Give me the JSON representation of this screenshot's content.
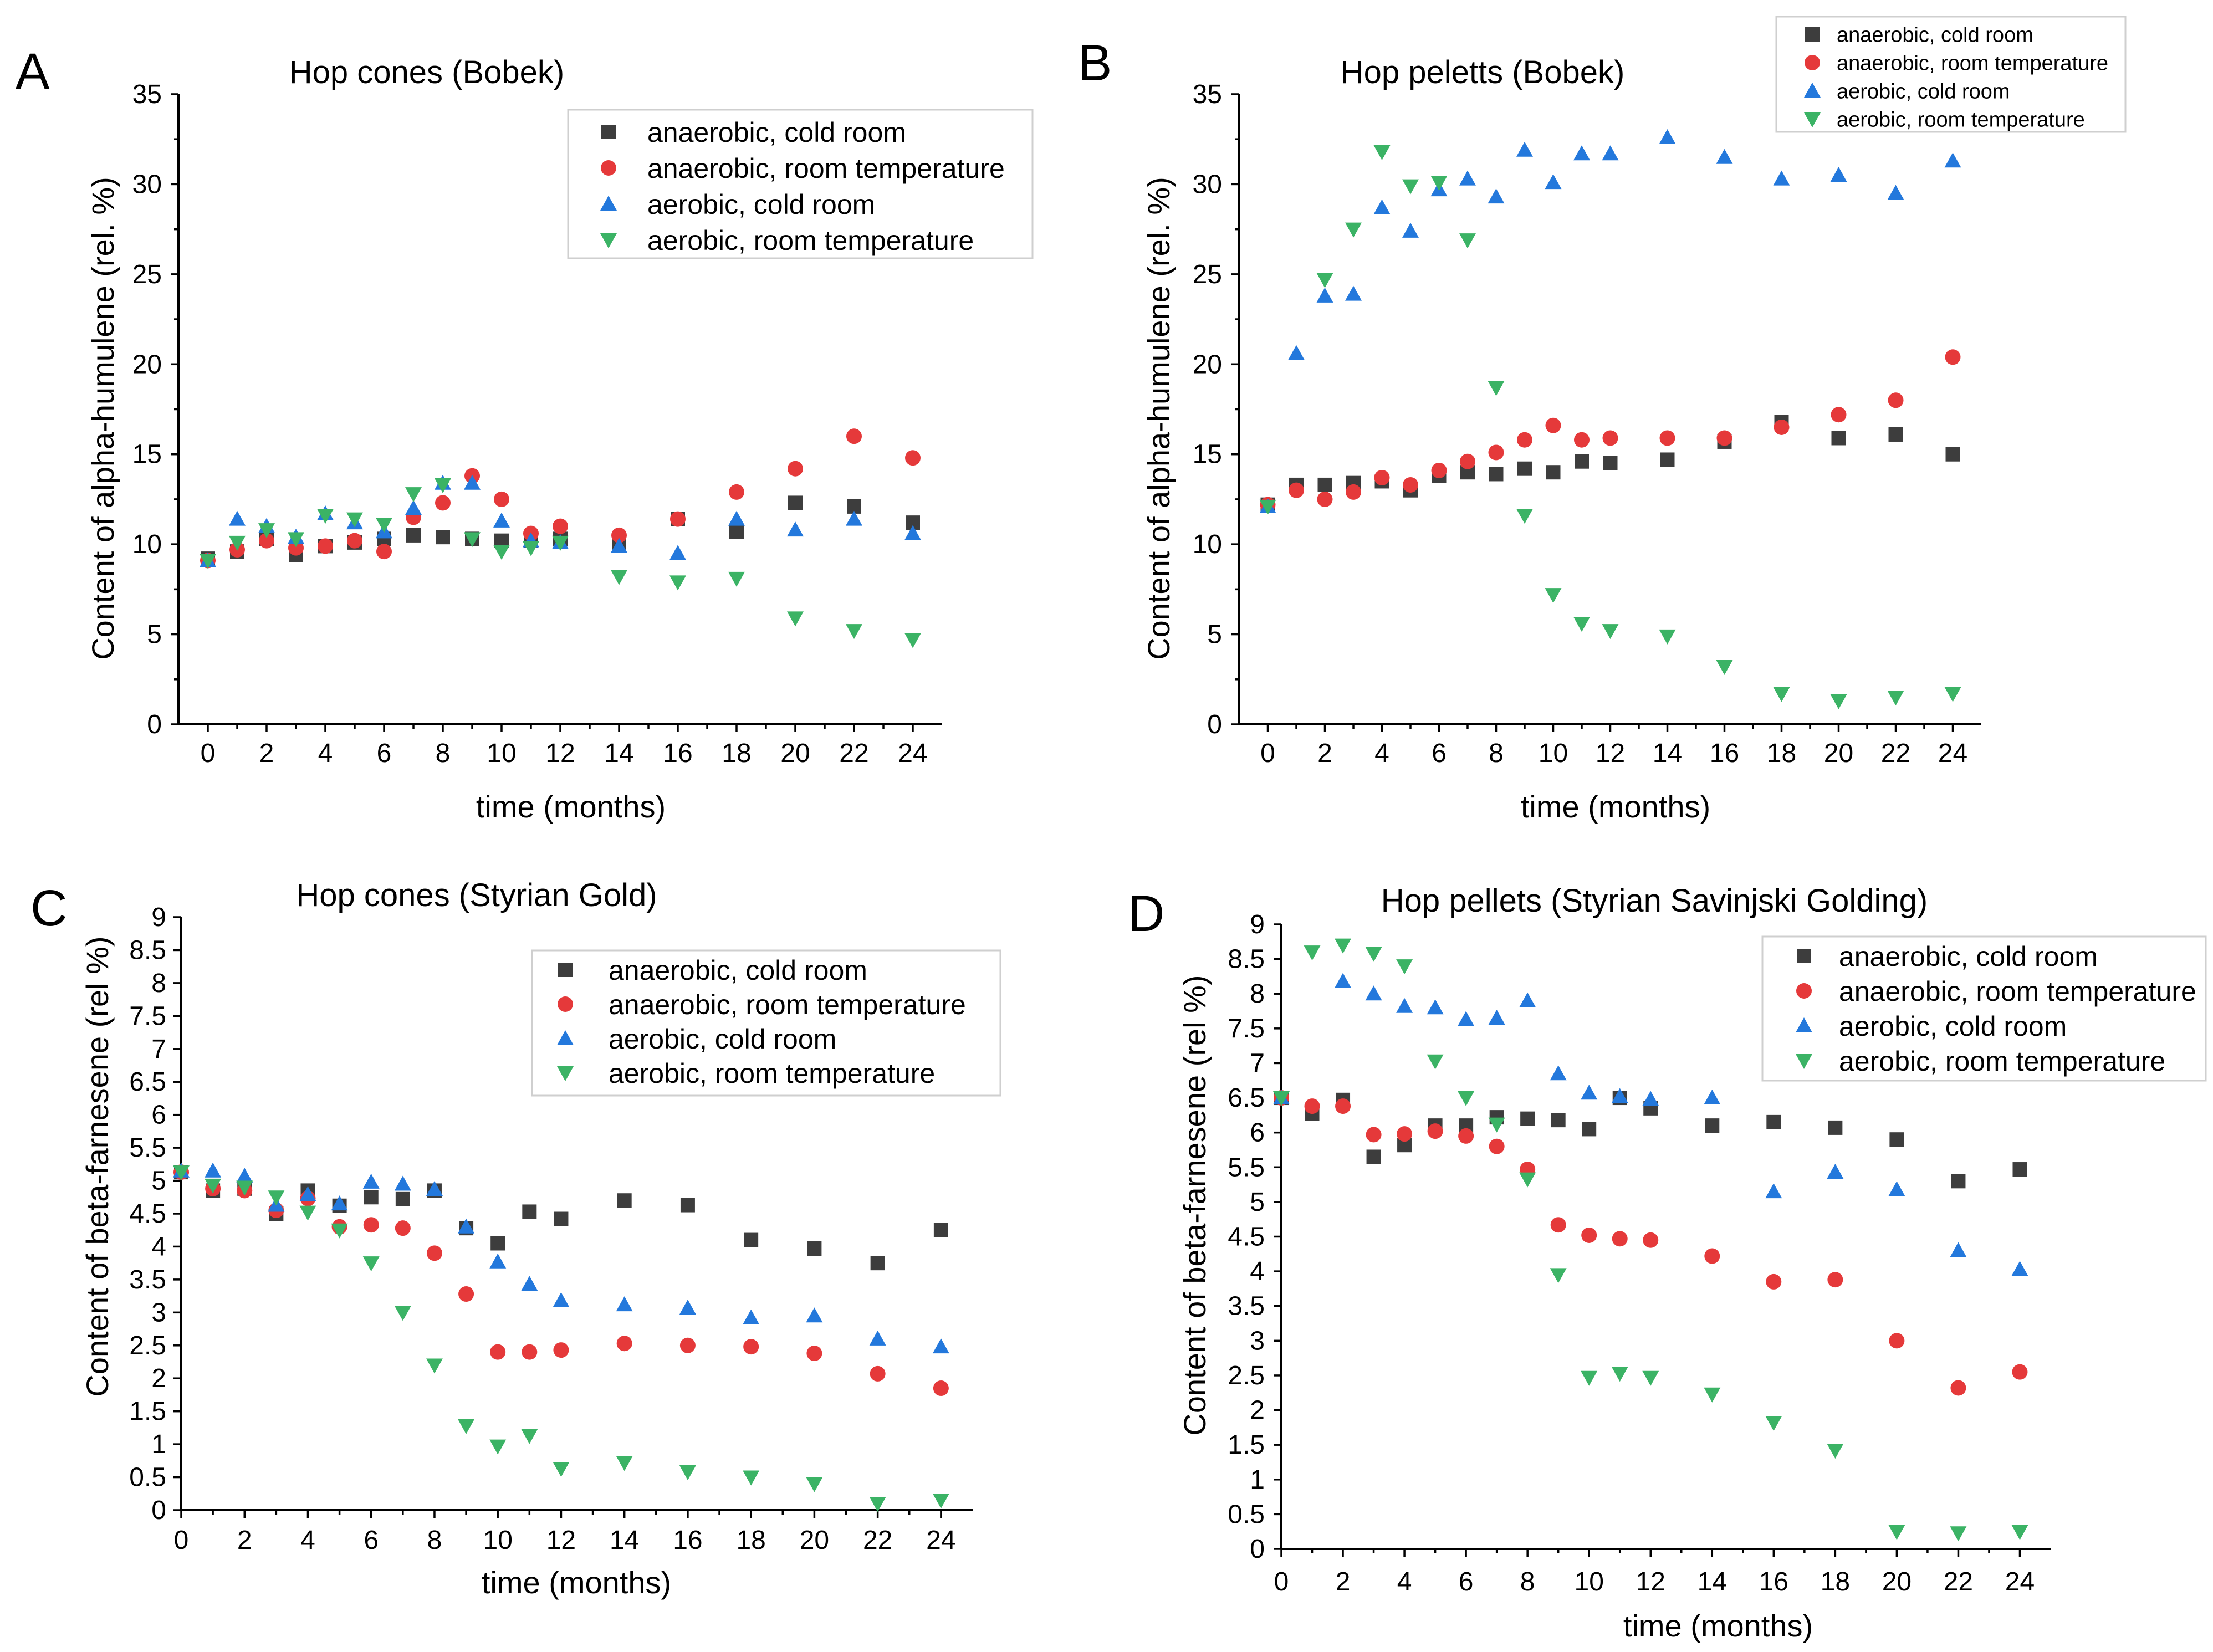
{
  "figure": {
    "colors": {
      "anaerobic_cold": "#3d3d3d",
      "anaerobic_room": "#e5393a",
      "aerobic_cold": "#2378dc",
      "aerobic_room": "#3bb365"
    },
    "legend_entries": [
      "anaerobic, cold room",
      "anaerobic, room temperature",
      "aerobic, cold room",
      "aerobic, room temperature"
    ]
  },
  "chart_data": [
    {
      "panel": "A",
      "type": "scatter",
      "title": "Hop cones (Bobek)",
      "xlabel": "time (months)",
      "ylabel": "Content of alpha-humulene (rel. %)",
      "xlim": [
        -1,
        25
      ],
      "ylim": [
        0,
        35
      ],
      "xticks": [
        "0",
        "2",
        "4",
        "6",
        "8",
        "10",
        "12",
        "14",
        "16",
        "18",
        "20",
        "22",
        "24"
      ],
      "yticks": [
        "0",
        "5",
        "10",
        "15",
        "20",
        "25",
        "30",
        "35"
      ],
      "legend_position": "top-right",
      "series": [
        {
          "name": "anaerobic, cold room",
          "marker": "square",
          "color": "#3d3d3d",
          "x": [
            0,
            1,
            2,
            3,
            4,
            5,
            6,
            7,
            8,
            9,
            10,
            11,
            12,
            14,
            16,
            18,
            20,
            22,
            24
          ],
          "y": [
            9.2,
            9.6,
            10.3,
            9.4,
            9.9,
            10.1,
            10.3,
            10.5,
            10.4,
            10.3,
            10.2,
            10.2,
            10.3,
            10.1,
            11.4,
            10.7,
            12.3,
            12.1,
            11.2
          ]
        },
        {
          "name": "anaerobic, room temperature",
          "marker": "circle",
          "color": "#e5393a",
          "x": [
            0,
            1,
            2,
            3,
            4,
            5,
            6,
            7,
            8,
            9,
            10,
            11,
            12,
            14,
            16,
            18,
            20,
            22,
            24
          ],
          "y": [
            9.1,
            9.7,
            10.2,
            9.8,
            9.9,
            10.2,
            9.6,
            11.5,
            12.3,
            13.8,
            12.5,
            10.6,
            11.0,
            10.5,
            11.4,
            12.9,
            14.2,
            16.0,
            14.8
          ]
        },
        {
          "name": "aerobic, cold room",
          "marker": "triangle-up",
          "color": "#2378dc",
          "x": [
            0,
            1,
            2,
            3,
            4,
            5,
            6,
            7,
            8,
            9,
            10,
            11,
            12,
            14,
            16,
            18,
            20,
            22,
            24
          ],
          "y": [
            9.1,
            11.4,
            11.0,
            10.4,
            11.7,
            11.2,
            10.7,
            12.0,
            13.4,
            13.4,
            11.3,
            10.2,
            10.1,
            9.9,
            9.5,
            11.4,
            10.8,
            11.4,
            10.6
          ]
        },
        {
          "name": "aerobic, room temperature",
          "marker": "triangle-down",
          "color": "#3bb365",
          "x": [
            0,
            1,
            2,
            3,
            4,
            5,
            6,
            7,
            8,
            9,
            10,
            11,
            12,
            14,
            16,
            18,
            20,
            22,
            24
          ],
          "y": [
            9.1,
            10.1,
            10.8,
            10.3,
            11.6,
            11.4,
            11.1,
            12.8,
            13.3,
            10.3,
            9.6,
            9.8,
            10.1,
            8.2,
            7.9,
            8.1,
            5.9,
            5.2,
            4.7
          ]
        }
      ]
    },
    {
      "panel": "B",
      "type": "scatter",
      "title": "Hop peletts (Bobek)",
      "xlabel": "time (months)",
      "ylabel": "Content of alpha-humulene (rel. %)",
      "xlim": [
        -1,
        25
      ],
      "ylim": [
        0,
        35
      ],
      "xticks": [
        "0",
        "2",
        "4",
        "6",
        "8",
        "10",
        "12",
        "14",
        "16",
        "18",
        "20",
        "22",
        "24"
      ],
      "yticks": [
        "0",
        "5",
        "10",
        "15",
        "20",
        "25",
        "30",
        "35"
      ],
      "legend_position": "top-right",
      "series": [
        {
          "name": "anaerobic, cold room",
          "marker": "square",
          "color": "#3d3d3d",
          "x": [
            0,
            1,
            2,
            3,
            4,
            5,
            6,
            7,
            8,
            9,
            10,
            11,
            12,
            14,
            16,
            18,
            20,
            22,
            24
          ],
          "y": [
            12.2,
            13.3,
            13.3,
            13.4,
            13.5,
            13.0,
            13.8,
            14.0,
            13.9,
            14.2,
            14.0,
            14.6,
            14.5,
            14.7,
            15.7,
            16.8,
            15.9,
            16.1,
            15.0
          ]
        },
        {
          "name": "anaerobic, room temperature",
          "marker": "circle",
          "color": "#e5393a",
          "x": [
            0,
            1,
            2,
            3,
            4,
            5,
            6,
            7,
            8,
            9,
            10,
            11,
            12,
            14,
            16,
            18,
            20,
            22,
            24
          ],
          "y": [
            12.2,
            13.0,
            12.5,
            12.9,
            13.7,
            13.3,
            14.1,
            14.6,
            15.1,
            15.8,
            16.6,
            15.8,
            15.9,
            15.9,
            15.9,
            16.5,
            17.2,
            18.0,
            20.4
          ]
        },
        {
          "name": "aerobic, cold room",
          "marker": "triangle-up",
          "color": "#2378dc",
          "x": [
            0,
            1,
            2,
            3,
            4,
            5,
            6,
            7,
            8,
            9,
            10,
            11,
            12,
            14,
            16,
            18,
            20,
            22,
            24
          ],
          "y": [
            12.1,
            20.6,
            23.8,
            23.9,
            28.7,
            27.4,
            29.7,
            30.3,
            29.3,
            31.9,
            30.1,
            31.7,
            31.7,
            32.6,
            31.5,
            30.3,
            30.5,
            29.5,
            31.3
          ]
        },
        {
          "name": "aerobic, room temperature",
          "marker": "triangle-down",
          "color": "#3bb365",
          "x": [
            0,
            2,
            3,
            4,
            5,
            6,
            7,
            8,
            9,
            10,
            11,
            12,
            14,
            16,
            18,
            20,
            22,
            24
          ],
          "y": [
            12.1,
            24.7,
            27.5,
            31.8,
            29.9,
            30.1,
            26.9,
            18.7,
            11.6,
            7.2,
            5.6,
            5.2,
            4.9,
            3.2,
            1.7,
            1.3,
            1.5,
            1.7
          ]
        }
      ]
    },
    {
      "panel": "C",
      "type": "scatter",
      "title": "Hop cones (Styrian Gold)",
      "xlabel": "time (months)",
      "ylabel": "Content of beta-farnesene (rel %)",
      "xlim": [
        0,
        25
      ],
      "ylim": [
        0,
        9
      ],
      "xticks": [
        "0",
        "2",
        "4",
        "6",
        "8",
        "10",
        "12",
        "14",
        "16",
        "18",
        "20",
        "22",
        "24"
      ],
      "yticks": [
        "0",
        "0.5",
        "1",
        "1.5",
        "2",
        "2.5",
        "3",
        "3.5",
        "4",
        "4.5",
        "5",
        "5.5",
        "6",
        "6.5",
        "7",
        "7.5",
        "8",
        "8.5",
        "9"
      ],
      "legend_position": "top-right",
      "series": [
        {
          "name": "anaerobic, cold room",
          "marker": "square",
          "color": "#3d3d3d",
          "x": [
            0,
            1,
            2,
            3,
            4,
            5,
            6,
            7,
            8,
            9,
            10,
            11,
            12,
            14,
            16,
            18,
            20,
            22,
            24
          ],
          "y": [
            5.13,
            4.85,
            4.88,
            4.5,
            4.85,
            4.62,
            4.75,
            4.72,
            4.85,
            4.28,
            4.05,
            4.53,
            4.42,
            4.7,
            4.63,
            4.1,
            3.97,
            3.75,
            4.25
          ]
        },
        {
          "name": "anaerobic, room temperature",
          "marker": "circle",
          "color": "#e5393a",
          "x": [
            0,
            1,
            2,
            3,
            4,
            5,
            6,
            7,
            8,
            9,
            10,
            11,
            12,
            14,
            16,
            18,
            20,
            22,
            24
          ],
          "y": [
            5.13,
            4.88,
            4.85,
            4.55,
            4.73,
            4.3,
            4.33,
            4.28,
            3.9,
            3.28,
            2.4,
            2.4,
            2.43,
            2.53,
            2.5,
            2.48,
            2.38,
            2.07,
            1.85
          ]
        },
        {
          "name": "aerobic, cold room",
          "marker": "triangle-up",
          "color": "#2378dc",
          "x": [
            0,
            1,
            2,
            3,
            4,
            5,
            6,
            7,
            8,
            9,
            10,
            11,
            12,
            14,
            16,
            18,
            20,
            22,
            24
          ],
          "y": [
            5.15,
            5.15,
            5.07,
            4.63,
            4.79,
            4.65,
            4.98,
            4.95,
            4.87,
            4.3,
            3.77,
            3.43,
            3.18,
            3.12,
            3.07,
            2.92,
            2.95,
            2.6,
            2.48
          ]
        },
        {
          "name": "aerobic, room temperature",
          "marker": "triangle-down",
          "color": "#3bb365",
          "x": [
            0,
            1,
            2,
            3,
            4,
            5,
            6,
            7,
            8,
            9,
            10,
            11,
            12,
            14,
            16,
            18,
            20,
            22,
            24
          ],
          "y": [
            5.13,
            4.93,
            4.9,
            4.75,
            4.52,
            4.25,
            3.75,
            3.0,
            2.2,
            1.28,
            0.97,
            1.13,
            0.63,
            0.72,
            0.58,
            0.5,
            0.4,
            0.1,
            0.15
          ]
        }
      ]
    },
    {
      "panel": "D",
      "type": "scatter",
      "title": "Hop pellets (Styrian Savinjski Golding)",
      "xlabel": "time (months)",
      "ylabel": "Content of beta-farnesene (rel %)",
      "xlim": [
        0,
        25
      ],
      "ylim": [
        0,
        9
      ],
      "xticks": [
        "0",
        "2",
        "4",
        "6",
        "8",
        "10",
        "12",
        "14",
        "16",
        "18",
        "20",
        "22",
        "24"
      ],
      "yticks": [
        "0",
        "0.5",
        "1",
        "1.5",
        "2",
        "2.5",
        "3",
        "3.5",
        "4",
        "4.5",
        "5",
        "5.5",
        "6",
        "6.5",
        "7",
        "7.5",
        "8",
        "8.5",
        "9"
      ],
      "legend_position": "top-right",
      "series": [
        {
          "name": "anaerobic, cold room",
          "marker": "square",
          "color": "#3d3d3d",
          "x": [
            0,
            1,
            2,
            3,
            4,
            5,
            6,
            7,
            8,
            9,
            10,
            11,
            12,
            14,
            16,
            18,
            20,
            22,
            24
          ],
          "y": [
            6.5,
            6.27,
            6.47,
            5.65,
            5.82,
            6.1,
            6.1,
            6.22,
            6.2,
            6.18,
            6.05,
            6.5,
            6.35,
            6.1,
            6.15,
            6.07,
            5.9,
            5.3,
            5.47
          ]
        },
        {
          "name": "anaerobic, room temperature",
          "marker": "circle",
          "color": "#e5393a",
          "x": [
            0,
            1,
            2,
            3,
            4,
            5,
            6,
            7,
            8,
            9,
            10,
            11,
            12,
            14,
            16,
            18,
            20,
            22,
            24
          ],
          "y": [
            6.5,
            6.38,
            6.38,
            5.97,
            5.98,
            6.02,
            5.95,
            5.8,
            5.47,
            4.67,
            4.52,
            4.47,
            4.45,
            4.22,
            3.85,
            3.88,
            3.0,
            2.32,
            2.55
          ]
        },
        {
          "name": "aerobic, cold room",
          "marker": "triangle-up",
          "color": "#2378dc",
          "x": [
            0,
            2,
            3,
            4,
            5,
            6,
            7,
            8,
            9,
            10,
            11,
            12,
            14,
            16,
            18,
            20,
            22,
            24
          ],
          "y": [
            6.5,
            8.18,
            8.0,
            7.82,
            7.8,
            7.63,
            7.65,
            7.9,
            6.85,
            6.57,
            6.52,
            6.48,
            6.5,
            5.15,
            5.43,
            5.18,
            4.3,
            4.03
          ]
        },
        {
          "name": "aerobic, room temperature",
          "marker": "triangle-down",
          "color": "#3bb365",
          "x": [
            0,
            1,
            2,
            3,
            4,
            5,
            6,
            7,
            8,
            9,
            10,
            11,
            12,
            14,
            16,
            18,
            20,
            22,
            24
          ],
          "y": [
            6.5,
            8.6,
            8.7,
            8.58,
            8.4,
            7.03,
            6.5,
            6.12,
            5.33,
            3.95,
            2.47,
            2.53,
            2.47,
            2.23,
            1.82,
            1.42,
            0.25,
            0.23,
            0.25
          ]
        }
      ]
    }
  ]
}
